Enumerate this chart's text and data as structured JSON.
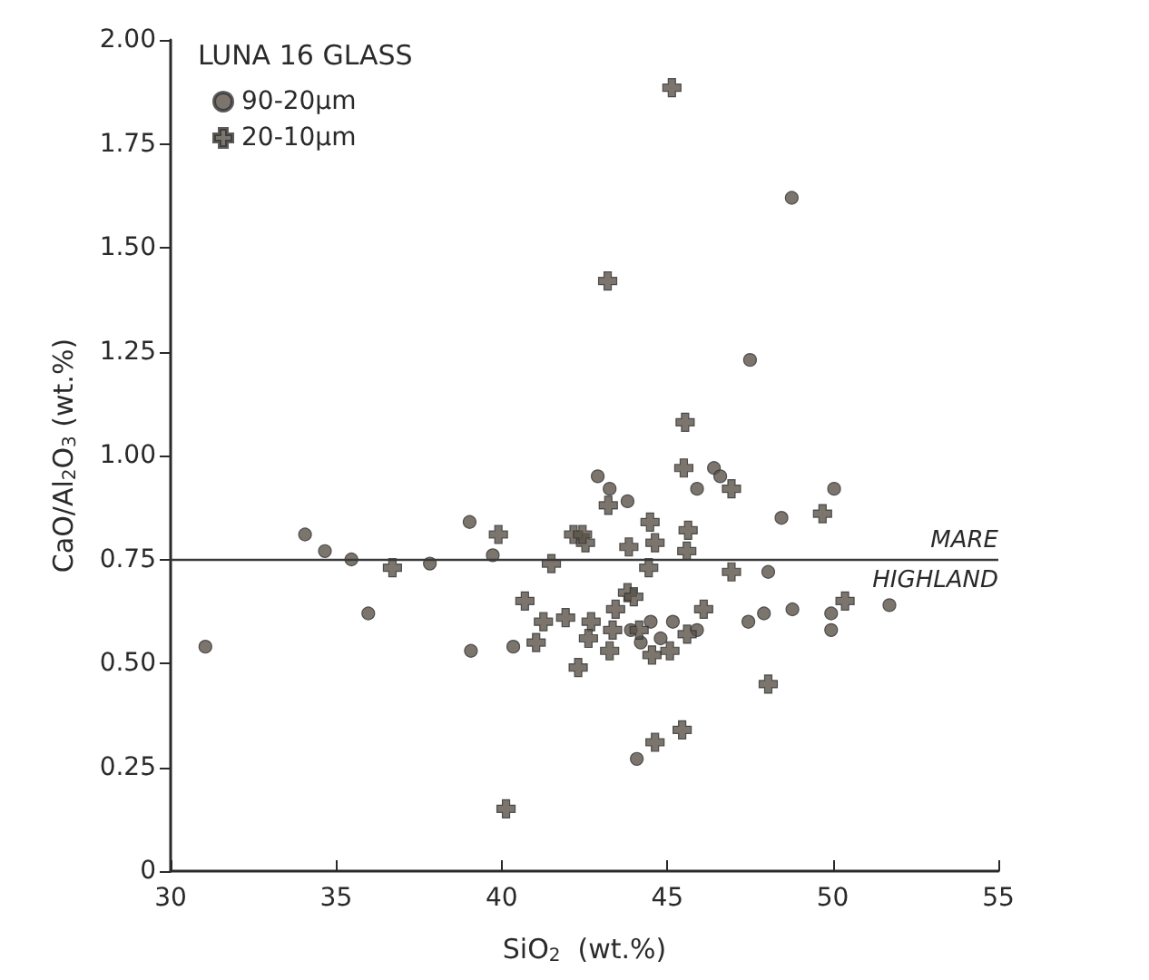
{
  "chart_data": {
    "type": "scatter",
    "xlabel": "SiO$_{2}$  (wt.%)",
    "ylabel": "CaO/Al$_{2}$O$_{3}$ (wt.%)",
    "legend_title": "LUNA 16 GLASS",
    "legend": "top left",
    "grid": false,
    "xlim": [
      30,
      55
    ],
    "xticks": [
      30,
      35,
      40,
      45,
      50,
      55
    ],
    "ylim": [
      0,
      2
    ],
    "yticks": [
      {
        "value": 0,
        "label": "0"
      },
      {
        "value": 0.25,
        "label": "0.25"
      },
      {
        "value": 0.5,
        "label": "0.50"
      },
      {
        "value": 0.75,
        "label": "0.75"
      },
      {
        "value": 1,
        "label": "1.00"
      },
      {
        "value": 1.25,
        "label": "1.25"
      },
      {
        "value": 1.5,
        "label": "1.50"
      },
      {
        "value": 1.75,
        "label": "1.75"
      },
      {
        "value": 2,
        "label": "2.00"
      }
    ],
    "ref_lines": [
      {
        "axis": "y",
        "value": 0.75,
        "label": "MARE",
        "color": "#3a3a3a"
      }
    ],
    "annotations": [
      {
        "text": "HIGHLAND",
        "y": 0.75
      }
    ],
    "series": [
      {
        "name": "90-20μm",
        "color": "#5a5249",
        "marker": "circle",
        "x": [
          31.05,
          34.06,
          34.66,
          35.46,
          35.97,
          37.83,
          39.03,
          39.07,
          39.73,
          40.35,
          44.08,
          48.45,
          48.05,
          47.45,
          47.92,
          48.78,
          49.95,
          49.95,
          51.71,
          45.17,
          48.76,
          47.5,
          42.9,
          43.26,
          43.8,
          45.9,
          46.41,
          46.6,
          50.04,
          44.2,
          44.8,
          45.4,
          45.9,
          44.5,
          43.9
        ],
        "values": [
          0.54,
          0.81,
          0.77,
          0.75,
          0.62,
          0.74,
          0.84,
          0.53,
          0.76,
          0.54,
          0.27,
          0.85,
          0.72,
          0.6,
          0.62,
          0.63,
          0.62,
          0.58,
          0.64,
          0.6,
          1.62,
          1.23,
          0.95,
          0.92,
          0.89,
          0.92,
          0.97,
          0.95,
          0.92,
          0.55,
          0.56,
          null,
          0.58,
          0.6,
          0.58
        ]
      },
      {
        "name": "20-10μm",
        "color": "#5a5249",
        "marker": "cross",
        "x": [
          36.7,
          39.9,
          40.13,
          40.7,
          41.26,
          41.04,
          41.93,
          42.31,
          41.5,
          42.17,
          42.53,
          42.7,
          42.62,
          43.35,
          43.26,
          43.53,
          43.8,
          43.84,
          44.44,
          44.63,
          45.63,
          45.59,
          44.44,
          46.94,
          46.1,
          43.44,
          43.99,
          44.15,
          44.54,
          45.08,
          45.6,
          48.05,
          44.63,
          45.45,
          50.37,
          49.69,
          45.14,
          43.2,
          45.54,
          45.5,
          43.22,
          46.94,
          44.48,
          42.44
        ],
        "values": [
          0.73,
          0.81,
          0.15,
          0.65,
          0.6,
          0.55,
          0.61,
          0.49,
          0.74,
          0.81,
          0.79,
          0.6,
          0.56,
          0.58,
          0.53,
          null,
          0.67,
          0.78,
          null,
          0.79,
          0.82,
          0.77,
          0.73,
          0.72,
          0.63,
          0.63,
          0.66,
          0.58,
          0.52,
          0.53,
          0.57,
          0.45,
          0.31,
          0.34,
          0.65,
          0.86,
          1.885,
          1.42,
          1.08,
          0.97,
          0.88,
          0.92,
          0.84,
          0.81
        ]
      }
    ]
  }
}
